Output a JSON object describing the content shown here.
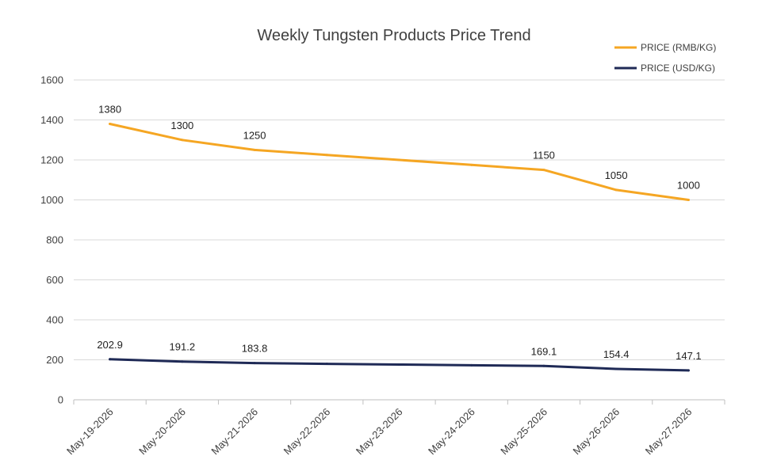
{
  "chart_data": {
    "type": "line",
    "title": "Weekly Tungsten Products Price Trend",
    "xlabel": "",
    "ylabel": "",
    "categories": [
      "May-19-2026",
      "May-20-2026",
      "May-21-2026",
      "May-22-2026",
      "May-23-2026",
      "May-24-2026",
      "May-25-2026",
      "May-26-2026",
      "May-27-2026"
    ],
    "series": [
      {
        "name": "PRICE (RMB/KG)",
        "color": "#f5a623",
        "values": [
          1380,
          1300,
          1250,
          1225,
          1200,
          1175,
          1150,
          1050,
          1000
        ],
        "labels": [
          "1380",
          "1300",
          "1250",
          null,
          null,
          null,
          "1150",
          "1050",
          "1000"
        ]
      },
      {
        "name": "PRICE (USD/KG)",
        "color": "#1f2a56",
        "values": [
          202.9,
          191.2,
          183.8,
          180.0,
          176.4,
          172.7,
          169.1,
          154.4,
          147.1
        ],
        "labels": [
          "202.9",
          "191.2",
          "183.8",
          null,
          null,
          null,
          "169.1",
          "154.4",
          "147.1"
        ]
      }
    ],
    "ylim": [
      0,
      1600
    ],
    "yticks": [
      0,
      200,
      400,
      600,
      800,
      1000,
      1200,
      1400,
      1600
    ],
    "grid": true,
    "legend_position": "top-right"
  }
}
